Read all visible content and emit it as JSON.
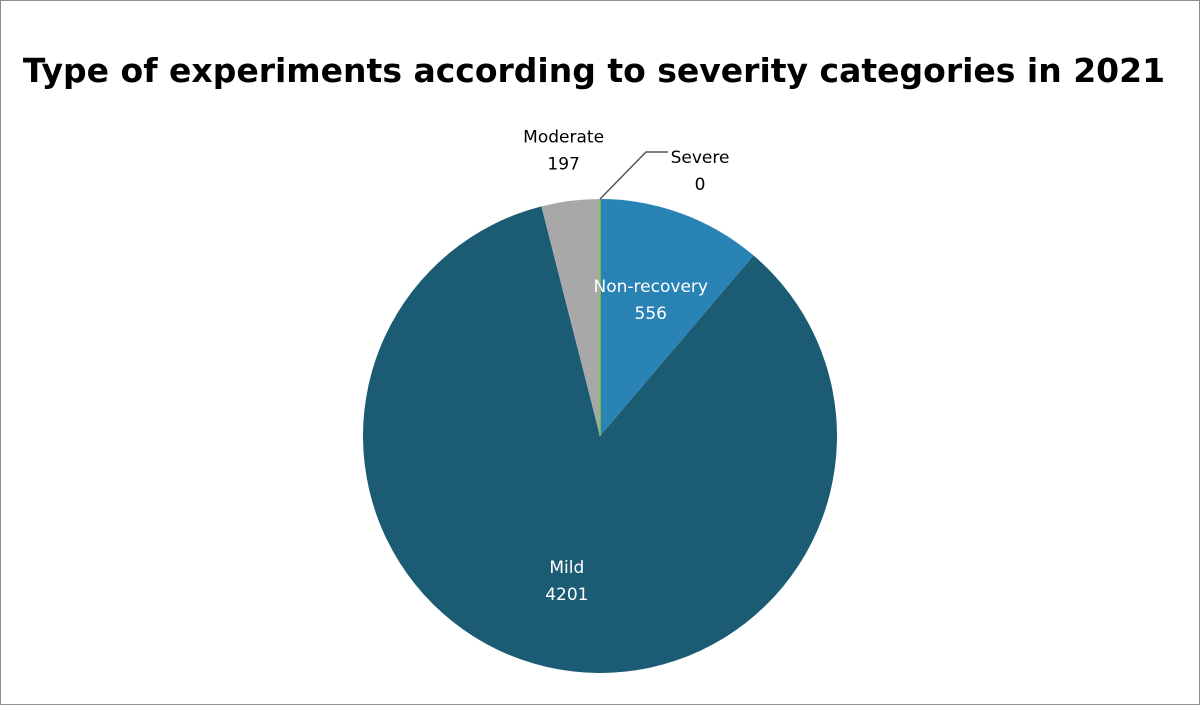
{
  "chart_data": {
    "type": "pie",
    "title": "Type of experiments according to severity categories in 2021",
    "slices": [
      {
        "label": "Non-recovery",
        "value": 556,
        "color": "#2a83b5",
        "label_color": "#ffffff"
      },
      {
        "label": "Mild",
        "value": 4201,
        "color": "#1b5c74",
        "label_color": "#ffffff"
      },
      {
        "label": "Moderate",
        "value": 197,
        "color": "#a8a8a8",
        "label_color": "#000000"
      },
      {
        "label": "Severe",
        "value": 0,
        "color": "#8dc63f",
        "label_color": "#000000"
      }
    ],
    "start": "12 o'clock",
    "direction": "clockwise",
    "legend": "none"
  }
}
